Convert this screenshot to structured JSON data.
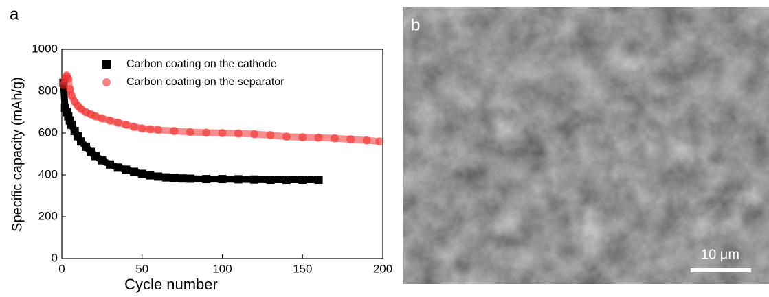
{
  "panel_label": "a",
  "chart_data": {
    "type": "scatter",
    "x_label": "Cycle number",
    "y_label": "Specific capacity (mAh/g)",
    "xlim": [
      0,
      200
    ],
    "xticks": [
      0,
      50,
      100,
      150,
      200
    ],
    "ylim": [
      0,
      1000
    ],
    "yticks": [
      0,
      200,
      400,
      600,
      800,
      1000
    ],
    "legend": "top-right",
    "series": [
      {
        "name": "Carbon coating on the cathode",
        "color": "#000000",
        "marker": "square",
        "x": [
          1,
          2,
          3,
          4,
          5,
          6,
          8,
          10,
          12,
          15,
          18,
          21,
          25,
          30,
          35,
          40,
          45,
          50,
          55,
          60,
          65,
          70,
          75,
          80,
          90,
          100,
          110,
          120,
          130,
          140,
          150,
          160
        ],
        "values": [
          840,
          720,
          700,
          680,
          660,
          640,
          610,
          585,
          560,
          535,
          510,
          490,
          470,
          450,
          435,
          425,
          415,
          405,
          398,
          392,
          388,
          385,
          383,
          382,
          380,
          380,
          379,
          378,
          377,
          377,
          377,
          377
        ]
      },
      {
        "name": "Carbon coating on the separator",
        "color": "#f03030",
        "marker": "circle",
        "x": [
          1,
          2,
          3,
          4,
          5,
          6,
          8,
          10,
          12,
          15,
          18,
          21,
          25,
          30,
          35,
          40,
          45,
          50,
          55,
          60,
          70,
          80,
          90,
          100,
          110,
          120,
          130,
          140,
          150,
          160,
          170,
          180,
          190,
          198
        ],
        "values": [
          830,
          860,
          875,
          860,
          810,
          780,
          750,
          730,
          715,
          700,
          690,
          680,
          670,
          660,
          650,
          640,
          630,
          622,
          618,
          615,
          610,
          605,
          602,
          600,
          598,
          595,
          590,
          583,
          580,
          578,
          575,
          570,
          565,
          560
        ]
      }
    ]
  },
  "image": {
    "label": "b",
    "scale_bar": "10 μm"
  }
}
